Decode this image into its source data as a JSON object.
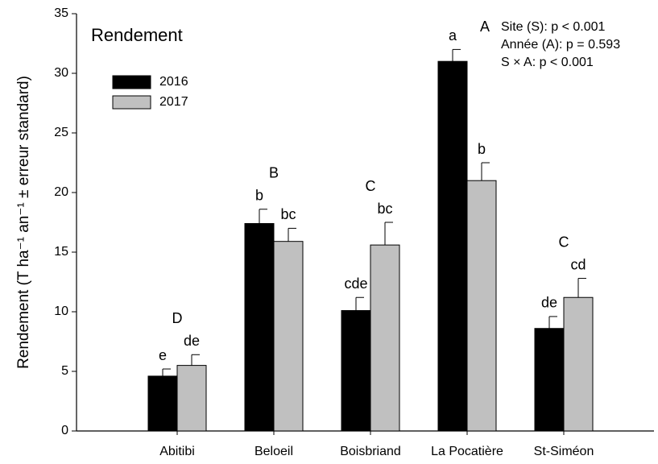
{
  "chart_data": {
    "type": "bar",
    "title": "Rendement",
    "y_label": "Rendement (T ha⁻¹ an⁻¹ ± erreur standard)",
    "annotations": [
      "Site (S): p < 0.001",
      "Année (A): p = 0.593",
      "S × A: p < 0.001"
    ],
    "categories": [
      "Abitibi",
      "Beloeil",
      "Boisbriand",
      "La Pocatière",
      "St-Siméon"
    ],
    "series": [
      {
        "name": "2016",
        "color": "#000000",
        "values": [
          4.6,
          17.4,
          10.1,
          31.0,
          8.6
        ],
        "errors": [
          0.6,
          1.2,
          1.1,
          1.0,
          1.0
        ],
        "letters": [
          "e",
          "b",
          "cde",
          "a",
          "de"
        ]
      },
      {
        "name": "2017",
        "color": "#c0c0c0",
        "values": [
          5.5,
          15.9,
          15.6,
          21.0,
          11.2
        ],
        "errors": [
          0.9,
          1.1,
          1.9,
          1.5,
          1.6
        ],
        "letters": [
          "de",
          "bc",
          "bc",
          "b",
          "cd"
        ]
      }
    ],
    "group_letters": [
      "D",
      "B",
      "C",
      "A",
      "C"
    ],
    "ylim": [
      0,
      35
    ],
    "yticks": [
      0,
      5,
      10,
      15,
      20,
      25,
      30,
      35
    ],
    "grid": false,
    "legend": "upper left"
  }
}
